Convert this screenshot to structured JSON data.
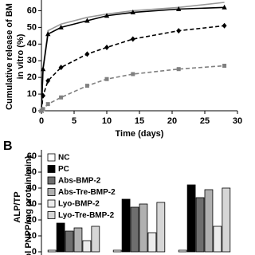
{
  "chart_data": [
    {
      "type": "line",
      "ylabel": [
        "Cumulative release of BM",
        "in vitro (%)"
      ],
      "xlabel": "Time (days)",
      "x": [
        0,
        0.25,
        1,
        3,
        7,
        10,
        14,
        21,
        28
      ],
      "series": [
        {
          "color": "#999999",
          "dash": false,
          "marker": "none",
          "values": [
            0,
            26,
            48,
            52,
            56,
            58,
            60,
            62,
            65
          ]
        },
        {
          "color": "#000000",
          "dash": false,
          "marker": "triangle",
          "values": [
            0,
            25,
            46,
            50,
            54,
            57,
            59,
            61,
            62
          ]
        },
        {
          "color": "#000000",
          "dash": true,
          "marker": "diamond",
          "values": [
            0,
            9,
            18,
            26,
            34,
            38,
            43,
            48,
            51
          ]
        },
        {
          "color": "#808080",
          "dash": true,
          "marker": "square",
          "values": [
            0,
            1,
            4,
            8,
            15,
            19,
            22,
            25,
            27
          ]
        }
      ],
      "xlim": [
        0,
        30
      ],
      "xticks": [
        0,
        5,
        10,
        15,
        20,
        25,
        30
      ],
      "ylim": [
        0,
        65
      ],
      "yticks": [
        0,
        10,
        20,
        30,
        40,
        50,
        60
      ]
    },
    {
      "type": "bar",
      "panel": "B",
      "ylabel": [
        "ALP/TP",
        "ol PNPP/mg protein/min)"
      ],
      "categories": [
        null,
        null,
        null
      ],
      "series": [
        {
          "name": "NC",
          "color": "#ffffff",
          "values": [
            1,
            1,
            1
          ]
        },
        {
          "name": "PC",
          "color": "#000000",
          "values": [
            18,
            33,
            42
          ]
        },
        {
          "name": "Abs-BMP-2",
          "color": "#6e6e6e",
          "values": [
            13,
            28,
            34
          ]
        },
        {
          "name": "Abs-Tre-BMP-2",
          "color": "#b0b0b0",
          "values": [
            15,
            30,
            39
          ]
        },
        {
          "name": "Lyo-BMP-2",
          "color": "#ececec",
          "values": [
            7,
            12,
            16
          ]
        },
        {
          "name": "Lyo-Tre-BMP-2",
          "color": "#d6d6d6",
          "values": [
            16,
            31,
            40
          ]
        }
      ],
      "ylim": [
        0,
        62
      ],
      "yticks": [
        0,
        10,
        20,
        30,
        40,
        50,
        60
      ]
    }
  ]
}
